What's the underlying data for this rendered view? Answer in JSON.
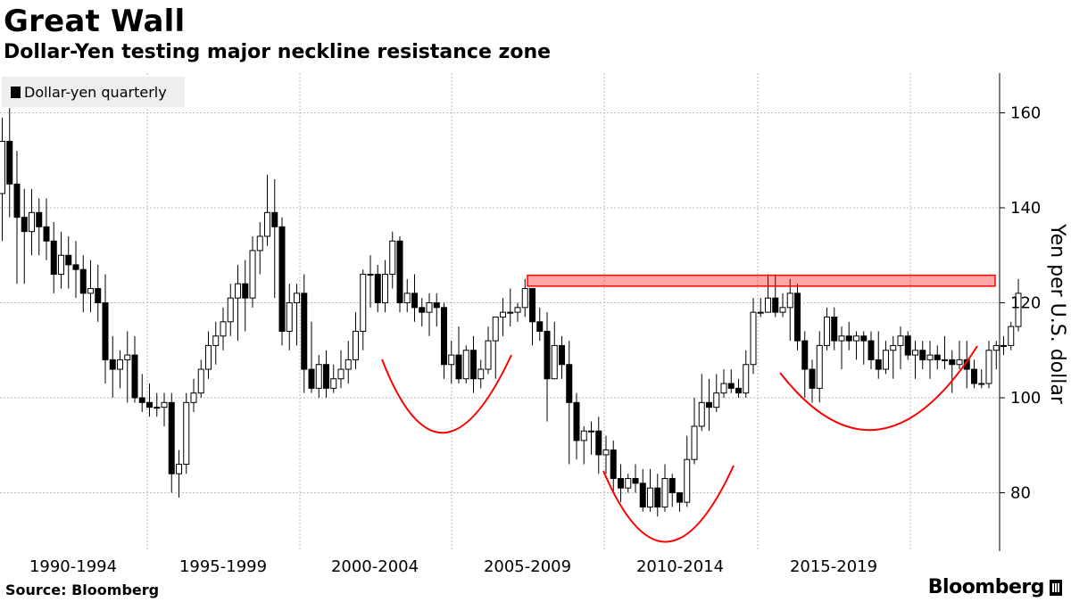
{
  "header": {
    "title": "Great Wall",
    "subtitle": "Dollar-Yen testing major neckline resistance zone"
  },
  "legend": {
    "label": "Dollar-yen quarterly"
  },
  "footer": {
    "source": "Source: Bloomberg",
    "brand": "Bloomberg"
  },
  "chart_data": {
    "type": "candlestick",
    "title": "Great Wall",
    "subtitle": "Dollar-Yen testing major neckline resistance zone",
    "ylabel": "Yen per U.S. dollar",
    "ylim": [
      68,
      168
    ],
    "yticks": [
      80,
      100,
      120,
      140,
      160
    ],
    "y_axis_position": "right",
    "grid": true,
    "legend_position": "top-left",
    "x_categories": [
      "1990-1994",
      "1995-1999",
      "2000-2004",
      "2005-2009",
      "2010-2014",
      "2015-2019"
    ],
    "series": [
      {
        "name": "Dollar-yen quarterly",
        "candles": [
          [
            143,
            159,
            133,
            154
          ],
          [
            154,
            161,
            138,
            145
          ],
          [
            145,
            152,
            124,
            138
          ],
          [
            138,
            144,
            124,
            135
          ],
          [
            135,
            144,
            130,
            139
          ],
          [
            139,
            142,
            130,
            136
          ],
          [
            136,
            142,
            129,
            133
          ],
          [
            133,
            137,
            122,
            126
          ],
          [
            126,
            135,
            123,
            130
          ],
          [
            130,
            134,
            123,
            128
          ],
          [
            128,
            133,
            121,
            127
          ],
          [
            127,
            130,
            118,
            122
          ],
          [
            122,
            129,
            118,
            123
          ],
          [
            123,
            128,
            116,
            120
          ],
          [
            120,
            126,
            103,
            108
          ],
          [
            108,
            113,
            100,
            106
          ],
          [
            106,
            110,
            102,
            108
          ],
          [
            108,
            114,
            99,
            109
          ],
          [
            109,
            113,
            99,
            100
          ],
          [
            100,
            105,
            97,
            99
          ],
          [
            99,
            103,
            96,
            98
          ],
          [
            98,
            101,
            96,
            98
          ],
          [
            98,
            101,
            94,
            99
          ],
          [
            99,
            101,
            80,
            84
          ],
          [
            84,
            89,
            79,
            86
          ],
          [
            86,
            101,
            84,
            99
          ],
          [
            99,
            104,
            97,
            101
          ],
          [
            101,
            108,
            100,
            106
          ],
          [
            106,
            114,
            104,
            111
          ],
          [
            111,
            116,
            107,
            113
          ],
          [
            113,
            119,
            110,
            116
          ],
          [
            116,
            124,
            113,
            121
          ],
          [
            121,
            128,
            112,
            124
          ],
          [
            124,
            129,
            114,
            121
          ],
          [
            121,
            134,
            119,
            131
          ],
          [
            131,
            137,
            126,
            134
          ],
          [
            134,
            147,
            132,
            139
          ],
          [
            139,
            146,
            121,
            136
          ],
          [
            136,
            138,
            111,
            114
          ],
          [
            114,
            124,
            110,
            120
          ],
          [
            120,
            124,
            111,
            122
          ],
          [
            122,
            126,
            101,
            106
          ],
          [
            106,
            116,
            101,
            102
          ],
          [
            102,
            109,
            100,
            107
          ],
          [
            107,
            110,
            100,
            102
          ],
          [
            102,
            107,
            101,
            104
          ],
          [
            104,
            110,
            102,
            106
          ],
          [
            106,
            112,
            103,
            108
          ],
          [
            108,
            118,
            106,
            114
          ],
          [
            114,
            127,
            110,
            126
          ],
          [
            126,
            130,
            119,
            126
          ],
          [
            126,
            128,
            118,
            120
          ],
          [
            120,
            129,
            118,
            126
          ],
          [
            126,
            135,
            123,
            133
          ],
          [
            133,
            134,
            118,
            120
          ],
          [
            120,
            125,
            118,
            122
          ],
          [
            122,
            126,
            116,
            119
          ],
          [
            119,
            121,
            115,
            118
          ],
          [
            118,
            122,
            113,
            120
          ],
          [
            120,
            122,
            115,
            119
          ],
          [
            119,
            120,
            104,
            107
          ],
          [
            107,
            112,
            103,
            109
          ],
          [
            109,
            115,
            103,
            104
          ],
          [
            104,
            111,
            103,
            110
          ],
          [
            110,
            113,
            101,
            104
          ],
          [
            104,
            108,
            102,
            106
          ],
          [
            106,
            115,
            105,
            112
          ],
          [
            112,
            117,
            104,
            117
          ],
          [
            117,
            121,
            113,
            118
          ],
          [
            118,
            123,
            115,
            118
          ],
          [
            118,
            120,
            116,
            119
          ],
          [
            119,
            125,
            117,
            123
          ],
          [
            123,
            123,
            111,
            116
          ],
          [
            116,
            119,
            112,
            114
          ],
          [
            114,
            118,
            95,
            104
          ],
          [
            104,
            116,
            104,
            111
          ],
          [
            111,
            113,
            104,
            107
          ],
          [
            107,
            112,
            86,
            99
          ],
          [
            99,
            101,
            87,
            91
          ],
          [
            91,
            94,
            86,
            93
          ],
          [
            93,
            95,
            88,
            93
          ],
          [
            93,
            96,
            84,
            88
          ],
          [
            88,
            92,
            84,
            89
          ],
          [
            89,
            91,
            80,
            83
          ],
          [
            83,
            86,
            78,
            81
          ],
          [
            81,
            84,
            80,
            83
          ],
          [
            83,
            86,
            80,
            82
          ],
          [
            82,
            85,
            76,
            77
          ],
          [
            77,
            85,
            76,
            81
          ],
          [
            81,
            84,
            75,
            77
          ],
          [
            77,
            86,
            76,
            83
          ],
          [
            83,
            84,
            77,
            80
          ],
          [
            80,
            80,
            76,
            78
          ],
          [
            78,
            92,
            77,
            87
          ],
          [
            87,
            100,
            86,
            94
          ],
          [
            94,
            105,
            93,
            99
          ],
          [
            99,
            104,
            93,
            98
          ],
          [
            98,
            105,
            97,
            101
          ],
          [
            101,
            106,
            100,
            103
          ],
          [
            103,
            106,
            101,
            102
          ],
          [
            102,
            104,
            100,
            101
          ],
          [
            101,
            110,
            100,
            107
          ],
          [
            107,
            121,
            105,
            118
          ],
          [
            118,
            121,
            117,
            118
          ],
          [
            118,
            126,
            118,
            121
          ],
          [
            121,
            126,
            117,
            118
          ],
          [
            118,
            122,
            117,
            119
          ],
          [
            119,
            125,
            112,
            122
          ],
          [
            122,
            124,
            110,
            112
          ],
          [
            112,
            114,
            100,
            106
          ],
          [
            106,
            108,
            99,
            102
          ],
          [
            102,
            114,
            99,
            111
          ],
          [
            111,
            119,
            110,
            117
          ],
          [
            117,
            119,
            110,
            112
          ],
          [
            112,
            115,
            106,
            113
          ],
          [
            113,
            116,
            110,
            112
          ],
          [
            112,
            114,
            108,
            113
          ],
          [
            113,
            114,
            107,
            112
          ],
          [
            112,
            114,
            106,
            108
          ],
          [
            108,
            114,
            104,
            106
          ],
          [
            106,
            112,
            105,
            110
          ],
          [
            110,
            113,
            104,
            111
          ],
          [
            111,
            115,
            106,
            113
          ],
          [
            113,
            114,
            108,
            109
          ],
          [
            109,
            112,
            104,
            110
          ],
          [
            110,
            112,
            106,
            108
          ],
          [
            108,
            112,
            104,
            109
          ],
          [
            109,
            111,
            106,
            108
          ],
          [
            108,
            113,
            106,
            108
          ],
          [
            108,
            110,
            101,
            107
          ],
          [
            107,
            112,
            106,
            108
          ],
          [
            108,
            112,
            102,
            106
          ],
          [
            106,
            108,
            102,
            103
          ],
          [
            103,
            106,
            102,
            103
          ],
          [
            103,
            112,
            102,
            110
          ],
          [
            110,
            112,
            106,
            111
          ],
          [
            111,
            113,
            109,
            111
          ],
          [
            111,
            116,
            110,
            115
          ],
          [
            115,
            125,
            114,
            122
          ]
        ]
      }
    ],
    "annotations": [
      {
        "type": "resistance-zone",
        "y_range": [
          123.5,
          125.8
        ],
        "color": "#ff0000"
      },
      {
        "type": "arc",
        "color": "#ff0000"
      },
      {
        "type": "arc",
        "color": "#ff0000"
      },
      {
        "type": "arc",
        "color": "#ff0000"
      },
      {
        "type": "arc",
        "color": "#ff0000"
      }
    ],
    "colors": {
      "candle_up": "#ffffff",
      "candle_down": "#000000",
      "grid": "#bbbbbb",
      "annotation": "#ff0000"
    }
  }
}
